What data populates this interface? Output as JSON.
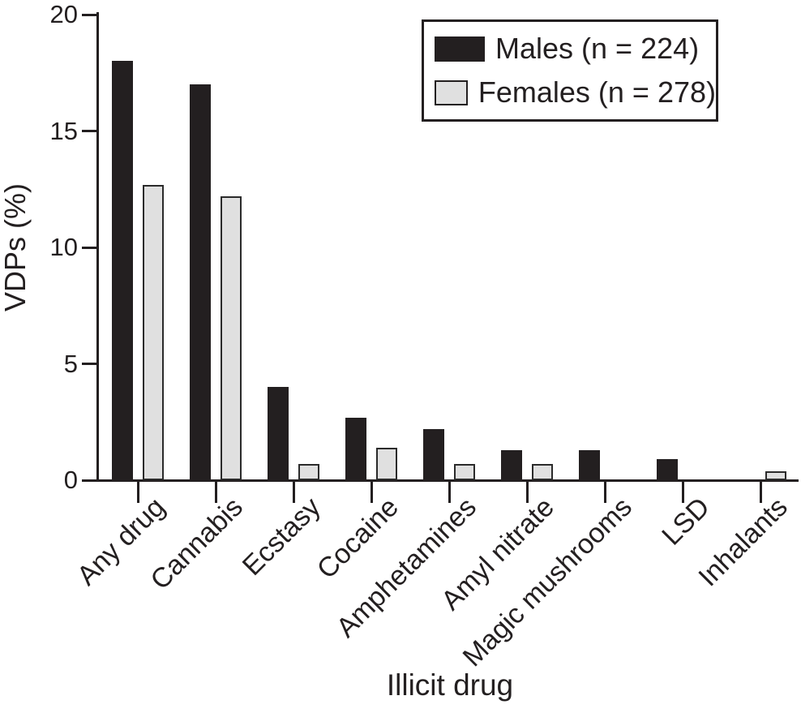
{
  "figure": {
    "background_color": "#ffffff",
    "ink_color": "#231f20"
  },
  "chart_data": {
    "type": "bar",
    "title": "",
    "xlabel": "Illicit drug",
    "ylabel": "VDPs (%)",
    "ylim": [
      0,
      20
    ],
    "yticks": [
      0,
      5,
      10,
      15,
      20
    ],
    "grid": false,
    "legend_position": "top-right",
    "categories": [
      "Any drug",
      "Cannabis",
      "Ecstasy",
      "Cocaine",
      "Amphetamines",
      "Amyl nitrate",
      "Magic mushrooms",
      "LSD",
      "Inhalants"
    ],
    "series": [
      {
        "name": "Males (n = 224)",
        "color": "#231f20",
        "values": [
          18.0,
          17.0,
          4.0,
          2.7,
          2.2,
          1.3,
          1.3,
          0.9,
          0
        ]
      },
      {
        "name": "Females (n = 278)",
        "color": "#e0e0e0",
        "values": [
          12.7,
          12.2,
          0.7,
          1.4,
          0.7,
          0.7,
          0,
          0,
          0.4
        ]
      }
    ]
  }
}
